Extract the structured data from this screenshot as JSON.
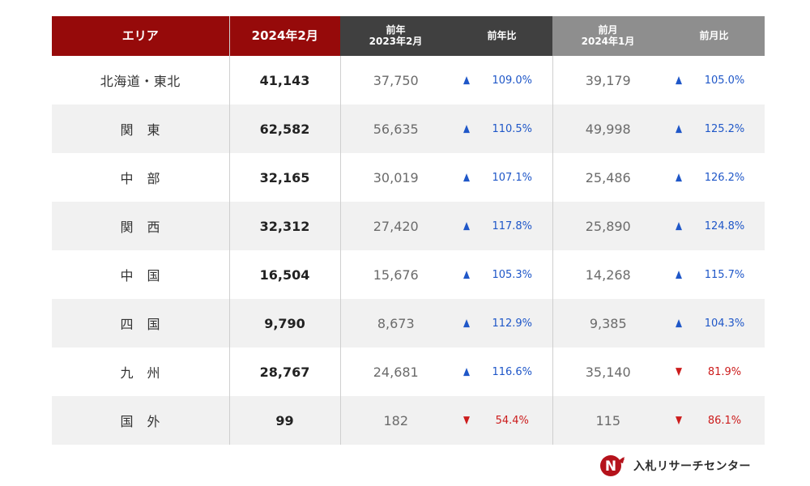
{
  "chart_data": {
    "type": "table",
    "columns": [
      "エリア",
      "2024年2月",
      "前年 2023年2月",
      "前年比",
      "前月 2024年1月",
      "前月比"
    ],
    "headers": {
      "area": "エリア",
      "current": "2024年2月",
      "prev_year_top": "前年",
      "prev_year_bottom": "2023年2月",
      "yoy": "前年比",
      "prev_month_top": "前月",
      "prev_month_bottom": "2024年1月",
      "mom": "前月比"
    },
    "rows": [
      {
        "area": "北海道・東北",
        "current": "41,143",
        "prev_year": "37,750",
        "yoy": "109.0%",
        "yoy_dir": "up",
        "prev_month": "39,179",
        "mom": "105.0%",
        "mom_dir": "up"
      },
      {
        "area": "関　東",
        "current": "62,582",
        "prev_year": "56,635",
        "yoy": "110.5%",
        "yoy_dir": "up",
        "prev_month": "49,998",
        "mom": "125.2%",
        "mom_dir": "up"
      },
      {
        "area": "中　部",
        "current": "32,165",
        "prev_year": "30,019",
        "yoy": "107.1%",
        "yoy_dir": "up",
        "prev_month": "25,486",
        "mom": "126.2%",
        "mom_dir": "up"
      },
      {
        "area": "関　西",
        "current": "32,312",
        "prev_year": "27,420",
        "yoy": "117.8%",
        "yoy_dir": "up",
        "prev_month": "25,890",
        "mom": "124.8%",
        "mom_dir": "up"
      },
      {
        "area": "中　国",
        "current": "16,504",
        "prev_year": "15,676",
        "yoy": "105.3%",
        "yoy_dir": "up",
        "prev_month": "14,268",
        "mom": "115.7%",
        "mom_dir": "up"
      },
      {
        "area": "四　国",
        "current": "9,790",
        "prev_year": "8,673",
        "yoy": "112.9%",
        "yoy_dir": "up",
        "prev_month": "9,385",
        "mom": "104.3%",
        "mom_dir": "up"
      },
      {
        "area": "九　州",
        "current": "28,767",
        "prev_year": "24,681",
        "yoy": "116.6%",
        "yoy_dir": "up",
        "prev_month": "35,140",
        "mom": "81.9%",
        "mom_dir": "down"
      },
      {
        "area": "国　外",
        "current": "99",
        "prev_year": "182",
        "yoy": "54.4%",
        "yoy_dir": "down",
        "prev_month": "115",
        "mom": "86.1%",
        "mom_dir": "down"
      }
    ]
  },
  "logo": {
    "name": "入札リサーチセンター",
    "icon": "n-arrow-logo-icon"
  },
  "colors": {
    "header_red": "#960a0a",
    "header_dark": "#404040",
    "header_gray": "#8e8e8e",
    "up": "#1f57c8",
    "down": "#cc1c1c",
    "row_alt": "#f1f1f1"
  }
}
